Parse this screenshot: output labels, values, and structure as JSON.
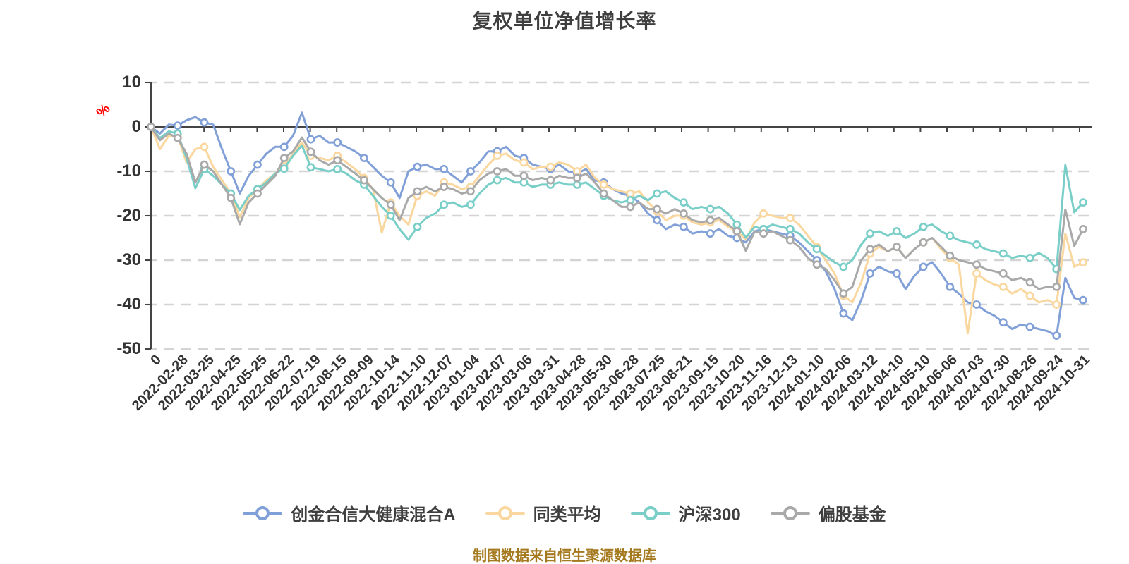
{
  "title": "复权单位净值增长率",
  "footer": {
    "text": "制图数据来自恒生聚源数据库"
  },
  "y_axis": {
    "unit": "%"
  },
  "chart_data": {
    "type": "line",
    "title": "复权单位净值增长率",
    "xlabel": "",
    "ylabel": "%",
    "ylim": [
      -50,
      10
    ],
    "grid": true,
    "grid_style": "dashed",
    "legend_position": "bottom",
    "y_ticks": [
      10,
      0,
      -10,
      -20,
      -30,
      -40,
      -50
    ],
    "x_labels": [
      "0",
      "2022-02-28",
      "2022-03-25",
      "2022-04-25",
      "2022-05-25",
      "2022-06-22",
      "2022-07-19",
      "2022-08-15",
      "2022-09-09",
      "2022-10-14",
      "2022-11-10",
      "2022-12-07",
      "2023-01-04",
      "2023-02-07",
      "2023-03-06",
      "2023-03-31",
      "2023-04-28",
      "2023-05-30",
      "2023-06-28",
      "2023-07-25",
      "2023-08-21",
      "2023-09-15",
      "2023-10-20",
      "2023-11-16",
      "2023-12-13",
      "2024-01-10",
      "2024-02-06",
      "2024-03-12",
      "2024-04-10",
      "2024-05-10",
      "2024-06-06",
      "2024-07-03",
      "2024-07-30",
      "2024-08-26",
      "2024-09-24",
      "2024-10-31"
    ],
    "series": [
      {
        "name": "创金合信大健康混合A",
        "color": "#82a0d8",
        "values": [
          0,
          -1.5,
          0.5,
          0.3,
          1.5,
          2.2,
          1.0,
          0.5,
          -5,
          -10,
          -15,
          -11,
          -8.5,
          -6,
          -4.5,
          -4.5,
          -2,
          3.2,
          -2.8,
          -2,
          -3.5,
          -3.5,
          -4.5,
          -5.5,
          -7,
          -9,
          -11,
          -12.5,
          -16,
          -10,
          -9,
          -8.5,
          -9.5,
          -9.5,
          -11,
          -12.5,
          -10,
          -8,
          -5.5,
          -5.5,
          -4.5,
          -6.5,
          -7,
          -8.5,
          -9,
          -9.5,
          -8.5,
          -10,
          -10.5,
          -9.5,
          -12,
          -12.5,
          -14,
          -15,
          -15.5,
          -17,
          -19.5,
          -21,
          -23,
          -22,
          -22.5,
          -24,
          -23.5,
          -24,
          -23,
          -24.5,
          -25,
          -26,
          -23.5,
          -23,
          -23.5,
          -24,
          -24.5,
          -26,
          -28,
          -30,
          -32.5,
          -36.5,
          -42,
          -43.5,
          -39,
          -33,
          -31.5,
          -32.5,
          -33,
          -36.5,
          -33.5,
          -31.5,
          -30.5,
          -33,
          -36,
          -37.5,
          -39.5,
          -40,
          -41.5,
          -42.5,
          -44,
          -45.5,
          -44.5,
          -45,
          -45.5,
          -46,
          -47,
          -34,
          -38.5,
          -39
        ]
      },
      {
        "name": "同类平均",
        "color": "#fad79e",
        "values": [
          0,
          -5,
          -2,
          -2,
          -8,
          -5,
          -4.5,
          -9,
          -12,
          -15,
          -20.3,
          -16,
          -14,
          -12,
          -10.5,
          -8.9,
          -6,
          -3.5,
          -6.5,
          -7,
          -7.5,
          -6.5,
          -8,
          -9.5,
          -11.5,
          -14,
          -23.8,
          -17,
          -20,
          -22,
          -15.5,
          -14.5,
          -15.5,
          -12.5,
          -13,
          -14,
          -13.5,
          -11,
          -8.5,
          -6.5,
          -6,
          -7.5,
          -8,
          -9.5,
          -9,
          -9,
          -8,
          -8.5,
          -10,
          -8.5,
          -11.5,
          -13,
          -14,
          -14.5,
          -15,
          -14.5,
          -17,
          -19,
          -21,
          -20,
          -20,
          -21.5,
          -22,
          -21.5,
          -21,
          -22.5,
          -23.5,
          -25.4,
          -21.5,
          -19.5,
          -20,
          -20.5,
          -20.5,
          -22,
          -24.5,
          -27,
          -30,
          -33,
          -38,
          -39.5,
          -35,
          -28.5,
          -27,
          -28,
          -27,
          -29.5,
          -27.5,
          -26,
          -25,
          -27.5,
          -29.5,
          -31,
          -46.5,
          -33,
          -34.5,
          -35.5,
          -36,
          -37.5,
          -36.5,
          -38,
          -39.5,
          -39,
          -40,
          -24,
          -31.5,
          -30.5
        ]
      },
      {
        "name": "沪深300",
        "color": "#79cec8",
        "values": [
          0,
          -2.5,
          -1,
          -1.5,
          -7,
          -13.8,
          -9.5,
          -11,
          -13,
          -15,
          -18.7,
          -15.5,
          -14,
          -12.5,
          -10.5,
          -9.4,
          -6.5,
          -4.2,
          -9.1,
          -9.5,
          -10,
          -9.5,
          -10.5,
          -12,
          -13,
          -15.5,
          -18,
          -20,
          -23,
          -25.4,
          -22.5,
          -20.5,
          -19.5,
          -17.5,
          -17,
          -18,
          -17.5,
          -15,
          -13,
          -12,
          -11.5,
          -12.5,
          -12.5,
          -13.5,
          -13,
          -13,
          -12.5,
          -13,
          -13,
          -12.5,
          -14,
          -15.5,
          -16.5,
          -17,
          -16.5,
          -15.5,
          -16.5,
          -15,
          -14.5,
          -16,
          -17,
          -18.5,
          -18,
          -18.5,
          -18,
          -19.5,
          -22,
          -24.9,
          -22.5,
          -23,
          -22,
          -22.5,
          -23,
          -24,
          -26,
          -27.5,
          -29,
          -30.5,
          -31.5,
          -30,
          -26.5,
          -24,
          -23.5,
          -24.5,
          -23.5,
          -25,
          -24,
          -22.5,
          -22,
          -23.5,
          -24.5,
          -25.5,
          -26,
          -26.5,
          -27.5,
          -28,
          -28.5,
          -29.5,
          -29,
          -29.5,
          -28.4,
          -29.5,
          -32,
          -8.6,
          -19.2,
          -17
        ]
      },
      {
        "name": "偏股基金",
        "color": "#a9a9a9",
        "values": [
          0,
          -3,
          -1.5,
          -2.5,
          -6,
          -12.5,
          -8.5,
          -10,
          -13,
          -16,
          -21.9,
          -17,
          -15,
          -13,
          -11,
          -7,
          -5.5,
          -2.4,
          -5.6,
          -7.5,
          -8.5,
          -7.5,
          -9,
          -10.5,
          -12,
          -14,
          -16,
          -17.5,
          -21,
          -16,
          -14.5,
          -13.5,
          -14.5,
          -13.5,
          -14,
          -15,
          -14.5,
          -12,
          -10.5,
          -10,
          -9.5,
          -11,
          -11,
          -12,
          -11.5,
          -12,
          -11,
          -11.5,
          -11.5,
          -10.5,
          -12.5,
          -15,
          -16.5,
          -18,
          -18,
          -17,
          -18.5,
          -18.5,
          -19.5,
          -18.5,
          -19.5,
          -21,
          -21.5,
          -21,
          -20.5,
          -22,
          -23.5,
          -27.9,
          -23.5,
          -24,
          -23.5,
          -24.5,
          -25.5,
          -27,
          -29.5,
          -31,
          -32,
          -34.5,
          -37.5,
          -36,
          -30,
          -27.5,
          -26.5,
          -28,
          -27,
          -29.5,
          -27.5,
          -26,
          -25,
          -27,
          -29,
          -30,
          -30.5,
          -31,
          -32,
          -32.5,
          -33,
          -34.5,
          -34,
          -35,
          -36.5,
          -36,
          -36,
          -18.6,
          -26.8,
          -23
        ]
      }
    ]
  },
  "colors": {
    "grid": "#d4d4d4",
    "axis": "#444444",
    "tick_text": "#333333",
    "title_text": "#3f3f3f",
    "unit_red": "#ff0000",
    "footer_gold": "#a5791e",
    "marker_fill": "#ffffff"
  }
}
